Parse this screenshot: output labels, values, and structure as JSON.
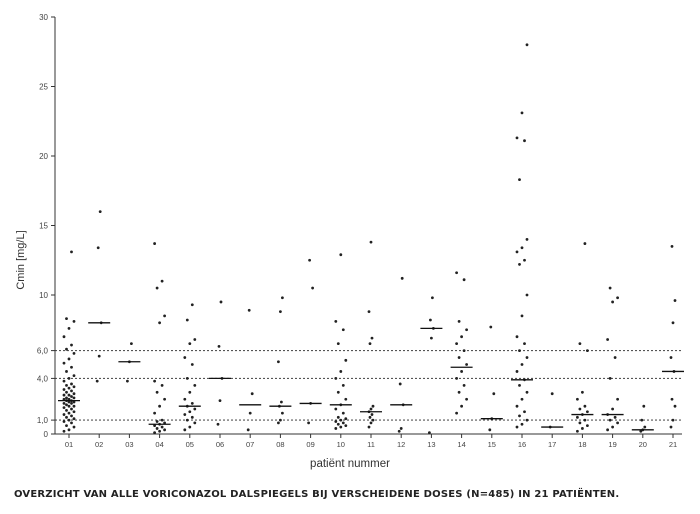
{
  "chart_data": {
    "type": "scatter",
    "xlabel": "patiënt nummer",
    "ylabel": "Cmin [mg/L]",
    "caption": "OVERZICHT VAN ALLE VORICONAZOL DALSPIEGELS BIJ VERSCHEIDENE DOSES (N=485) IN 21 PATIËNTEN.",
    "ylim": [
      0,
      30
    ],
    "ytick_labels": [
      "0",
      "1,0",
      "4,0",
      "6,0",
      "10",
      "15",
      "20",
      "25",
      "30"
    ],
    "ytick_values": [
      0,
      1,
      4,
      6,
      10,
      15,
      20,
      25,
      30
    ],
    "reference_lines": [
      1,
      4,
      6
    ],
    "categories": [
      "01",
      "02",
      "03",
      "04",
      "05",
      "06",
      "07",
      "08",
      "09",
      "10",
      "11",
      "12",
      "13",
      "14",
      "15",
      "16",
      "17",
      "18",
      "19",
      "20",
      "21"
    ],
    "medians": [
      2.4,
      8.0,
      5.2,
      0.7,
      2.0,
      4.0,
      2.1,
      2.0,
      2.2,
      2.1,
      1.6,
      2.1,
      7.6,
      4.8,
      1.1,
      3.9,
      0.5,
      1.4,
      1.4,
      0.3,
      4.5
    ],
    "points": [
      [
        0.2,
        0.3,
        0.5,
        0.6,
        0.8,
        0.9,
        1.0,
        1.1,
        1.2,
        1.3,
        1.4,
        1.5,
        1.6,
        1.7,
        1.8,
        1.9,
        2.0,
        2.0,
        2.1,
        2.2,
        2.2,
        2.3,
        2.3,
        2.4,
        2.4,
        2.5,
        2.5,
        2.6,
        2.6,
        2.7,
        2.8,
        2.8,
        2.9,
        3.0,
        3.1,
        3.2,
        3.3,
        3.4,
        3.5,
        3.6,
        3.8,
        4.0,
        4.2,
        4.5,
        4.8,
        5.1,
        5.4,
        5.8,
        6.1,
        6.4,
        7.0,
        7.6,
        8.1,
        8.3,
        13.1
      ],
      [
        3.8,
        5.6,
        8.0,
        13.4,
        16.0
      ],
      [
        3.8,
        5.2,
        6.5
      ],
      [
        0.1,
        0.2,
        0.3,
        0.4,
        0.5,
        0.6,
        0.7,
        0.8,
        0.9,
        1.0,
        1.5,
        2.0,
        2.5,
        3.0,
        3.5,
        3.8,
        8.0,
        8.5,
        10.5,
        11.0,
        13.7
      ],
      [
        0.3,
        0.5,
        0.8,
        1.0,
        1.2,
        1.4,
        1.6,
        1.8,
        2.0,
        2.2,
        2.5,
        3.0,
        3.5,
        4.0,
        5.0,
        5.5,
        6.5,
        6.8,
        8.2,
        9.3
      ],
      [
        0.7,
        2.4,
        4.0,
        6.3,
        9.5
      ],
      [
        0.3,
        1.5,
        2.9,
        8.9
      ],
      [
        0.8,
        1.0,
        1.5,
        2.0,
        2.3,
        5.2,
        8.8,
        9.8
      ],
      [
        0.8,
        2.2,
        10.5,
        12.5
      ],
      [
        0.4,
        0.5,
        0.6,
        0.7,
        0.8,
        0.9,
        1.0,
        1.1,
        1.2,
        1.5,
        1.8,
        2.1,
        2.5,
        3.0,
        3.5,
        4.0,
        4.5,
        5.3,
        6.5,
        7.5,
        8.1,
        12.9
      ],
      [
        0.5,
        0.8,
        1.0,
        1.2,
        1.4,
        1.6,
        1.8,
        2.0,
        6.5,
        6.9,
        8.8,
        13.8
      ],
      [
        0.2,
        0.4,
        2.1,
        3.6,
        11.2
      ],
      [
        0.1,
        6.9,
        7.6,
        8.2,
        9.8
      ],
      [
        1.5,
        2.0,
        2.5,
        3.0,
        3.5,
        4.0,
        4.5,
        5.0,
        5.5,
        6.0,
        6.5,
        7.0,
        7.5,
        8.1,
        11.1,
        11.6
      ],
      [
        0.3,
        1.1,
        2.9,
        7.7
      ],
      [
        0.5,
        0.7,
        1.0,
        1.3,
        1.6,
        2.0,
        2.5,
        3.0,
        3.5,
        3.9,
        4.5,
        5.0,
        5.5,
        6.0,
        6.5,
        7.0,
        8.5,
        10.0,
        12.2,
        12.5,
        13.1,
        13.4,
        14.0,
        18.3,
        21.1,
        21.3,
        23.1,
        28.0
      ],
      [
        0.5,
        2.9
      ],
      [
        0.2,
        0.4,
        0.6,
        0.8,
        1.0,
        1.2,
        1.4,
        1.6,
        1.8,
        2.0,
        2.5,
        3.0,
        6.0,
        6.5,
        13.7
      ],
      [
        0.3,
        0.5,
        0.8,
        1.0,
        1.2,
        1.4,
        1.8,
        2.5,
        4.0,
        5.5,
        6.8,
        9.5,
        9.8,
        10.5
      ],
      [
        0.2,
        0.3,
        0.5,
        1.0,
        2.0
      ],
      [
        0.5,
        1.0,
        2.0,
        2.5,
        4.5,
        5.5,
        8.0,
        9.6,
        13.5
      ]
    ]
  }
}
